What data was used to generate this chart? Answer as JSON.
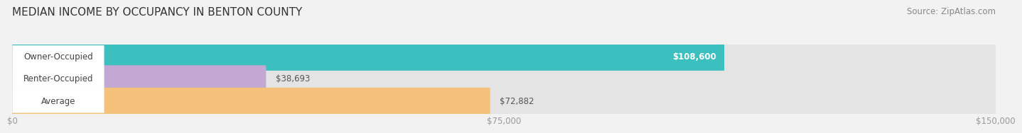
{
  "title": "MEDIAN INCOME BY OCCUPANCY IN BENTON COUNTY",
  "source": "Source: ZipAtlas.com",
  "categories": [
    "Owner-Occupied",
    "Renter-Occupied",
    "Average"
  ],
  "values": [
    108600,
    38693,
    72882
  ],
  "bar_colors": [
    "#3bbfbf",
    "#c4a8d4",
    "#f5c07a"
  ],
  "value_labels": [
    "$108,600",
    "$38,693",
    "$72,882"
  ],
  "xlim": [
    0,
    150000
  ],
  "xtick_values": [
    0,
    75000,
    150000
  ],
  "xtick_labels": [
    "$0",
    "$75,000",
    "$150,000"
  ],
  "background_color": "#f2f2f2",
  "bar_bg_color": "#e4e4e4",
  "label_bg_color": "#ffffff",
  "title_fontsize": 11,
  "source_fontsize": 8.5,
  "bar_label_fontsize": 8.5,
  "value_label_fontsize": 8.5,
  "tick_fontsize": 8.5,
  "bar_height": 0.62,
  "fig_width": 14.06,
  "fig_height": 1.96,
  "label_text_color": "#444444",
  "value_text_color_inside": "#ffffff",
  "value_text_color_outside": "#555555",
  "grid_color": "#cccccc",
  "tick_color": "#999999"
}
